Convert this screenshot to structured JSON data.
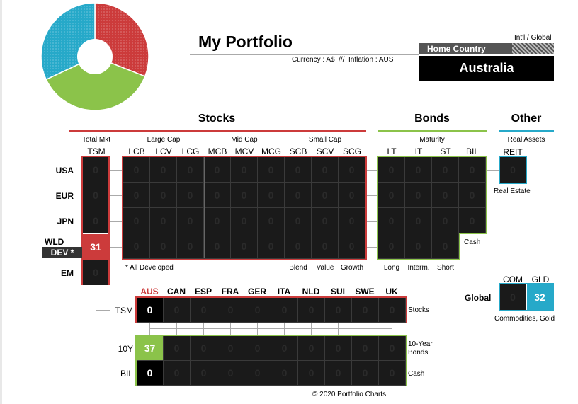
{
  "header": {
    "title": "My Portfolio",
    "subtitle": "Currency : A$  ///  Inflation : AUS",
    "intl_label": "Int'l / Global",
    "home_label": "Home Country",
    "country": "Australia"
  },
  "colors": {
    "stocks": "#cc3b3b",
    "bonds": "#8bc34a",
    "other": "#26a9c9",
    "dark": "#1a1a1a"
  },
  "pie": {
    "stocks": 31,
    "bonds": 37,
    "other": 32
  },
  "sections": {
    "stocks": "Stocks",
    "bonds": "Bonds",
    "other": "Other"
  },
  "stocks": {
    "groups": [
      "Total Mkt",
      "Large Cap",
      "Mid Cap",
      "Small Cap"
    ],
    "columns": [
      "TSM",
      "LCB",
      "LCV",
      "LCG",
      "MCB",
      "MCV",
      "MCG",
      "SCB",
      "SCV",
      "SCG"
    ],
    "rows": [
      "USA",
      "EUR",
      "JPN",
      "WLD",
      "EM"
    ],
    "dev_label": "DEV *",
    "tsm_values": [
      "0",
      "0",
      "0",
      "31",
      "0"
    ],
    "grid_value": "0",
    "footnote": "* All Developed",
    "styles": [
      "Blend",
      "Value",
      "Growth"
    ]
  },
  "bonds": {
    "group": "Maturity",
    "columns": [
      "LT",
      "IT",
      "ST",
      "BIL"
    ],
    "value": "0",
    "cash_label": "Cash",
    "maturities": [
      "Long",
      "Interm.",
      "Short"
    ]
  },
  "other": {
    "group": "Real Assets",
    "reit_label": "REIT",
    "reit_value": "0",
    "real_estate": "Real Estate",
    "global_label": "Global",
    "com_label": "COM",
    "gld_label": "GLD",
    "com_value": "0",
    "gld_value": "32",
    "commodities": "Commodities, Gold"
  },
  "countries": {
    "columns": [
      "AUS",
      "CAN",
      "ESP",
      "FRA",
      "GER",
      "ITA",
      "NLD",
      "SUI",
      "SWE",
      "UK"
    ],
    "rows": [
      "TSM",
      "10Y",
      "BIL"
    ],
    "values": [
      [
        "0",
        "0",
        "0",
        "0",
        "0",
        "0",
        "0",
        "0",
        "0",
        "0"
      ],
      [
        "37",
        "0",
        "0",
        "0",
        "0",
        "0",
        "0",
        "0",
        "0",
        "0"
      ],
      [
        "0",
        "0",
        "0",
        "0",
        "0",
        "0",
        "0",
        "0",
        "0",
        "0"
      ]
    ],
    "right_labels": [
      "Stocks",
      "10-Year\nBonds",
      "Cash"
    ]
  },
  "footer": "© 2020 Portfolio Charts"
}
